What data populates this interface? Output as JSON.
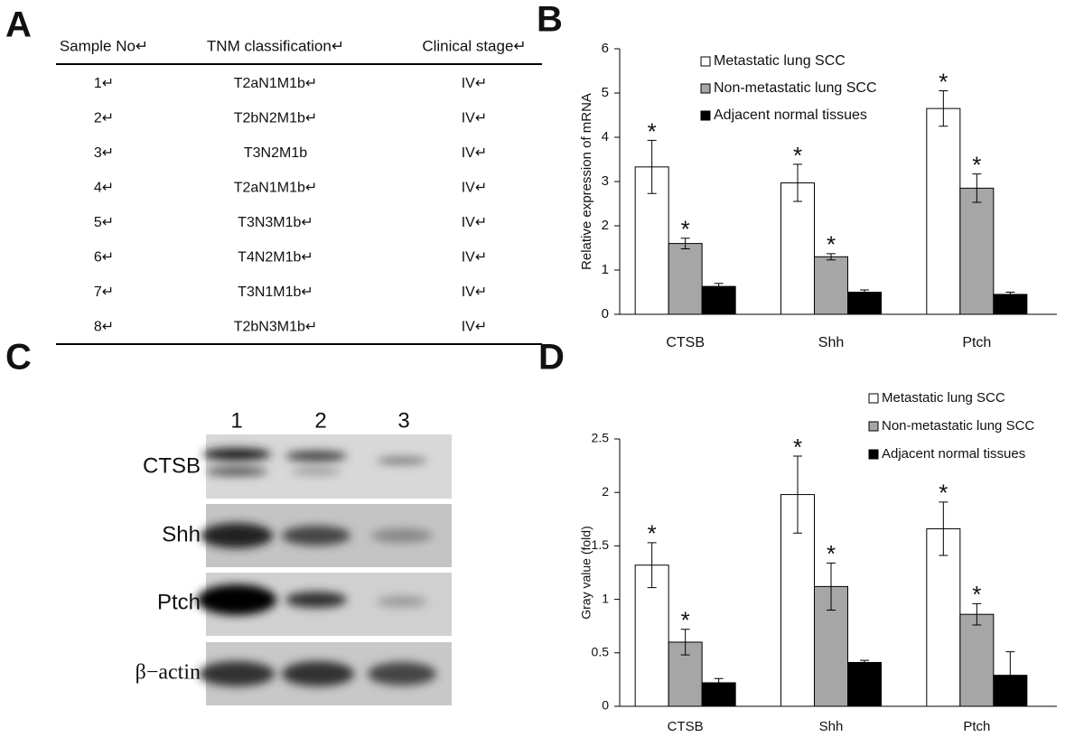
{
  "panel_labels": [
    "A",
    "B",
    "C",
    "D"
  ],
  "table": {
    "header": [
      "Sample No↵",
      "TNM classification↵",
      "Clinical stage↵"
    ],
    "rows": [
      [
        "1↵",
        "T2aN1M1b↵",
        "IV↵"
      ],
      [
        "2↵",
        "T2bN2M1b↵",
        "IV↵"
      ],
      [
        "3↵",
        "T3N2M1b",
        "IV↵"
      ],
      [
        "4↵",
        "T2aN1M1b↵",
        "IV↵"
      ],
      [
        "5↵",
        "T3N3M1b↵",
        "IV↵"
      ],
      [
        "6↵",
        "T4N2M1b↵",
        "IV↵"
      ],
      [
        "7↵",
        "T3N1M1b↵",
        "IV↵"
      ],
      [
        "8↵",
        "T2bN3M1b↵",
        "IV↵"
      ]
    ]
  },
  "blot": {
    "lanes": [
      "1",
      "2",
      "3"
    ],
    "rows": [
      "CTSB",
      "Shh",
      "Ptch",
      "β−actin"
    ]
  },
  "chart_data": [
    {
      "type": "bar",
      "y_label": "Relative expression of mRNA",
      "categories": [
        "CTSB",
        "Shh",
        "Ptch"
      ],
      "ylim": [
        0,
        6
      ],
      "yticks": [
        0,
        1,
        2,
        3,
        4,
        5,
        6
      ],
      "series": [
        {
          "name": "Metastatic lung SCC",
          "color": "#ffffff",
          "values": [
            3.33,
            2.97,
            4.65
          ],
          "errors": [
            0.6,
            0.42,
            0.4
          ],
          "annotation": "*"
        },
        {
          "name": "Non-metastatic lung SCC",
          "color": "#a6a6a6",
          "values": [
            1.6,
            1.3,
            2.85
          ],
          "errors": [
            0.12,
            0.07,
            0.32
          ],
          "annotation": "*"
        },
        {
          "name": "Adjacent normal tissues",
          "color": "#000000",
          "values": [
            0.63,
            0.5,
            0.45
          ],
          "errors": [
            0.07,
            0.05,
            0.05
          ]
        }
      ]
    },
    {
      "type": "bar",
      "y_label": "Gray value (fold)",
      "categories": [
        "CTSB",
        "Shh",
        "Ptch"
      ],
      "ylim": [
        0,
        2.5
      ],
      "yticks": [
        0,
        0.5,
        1,
        1.5,
        2,
        2.5
      ],
      "series": [
        {
          "name": "Metastatic lung SCC",
          "color": "#ffffff",
          "values": [
            1.32,
            1.98,
            1.66
          ],
          "errors": [
            0.21,
            0.36,
            0.25
          ],
          "annotation": "*"
        },
        {
          "name": "Non-metastatic lung SCC",
          "color": "#a6a6a6",
          "values": [
            0.6,
            1.12,
            0.86
          ],
          "errors": [
            0.12,
            0.22,
            0.1
          ],
          "annotation": "*"
        },
        {
          "name": "Adjacent normal tissues",
          "color": "#000000",
          "values": [
            0.22,
            0.41,
            0.29
          ],
          "errors": [
            0.04,
            0.02,
            0.22
          ]
        }
      ]
    }
  ]
}
